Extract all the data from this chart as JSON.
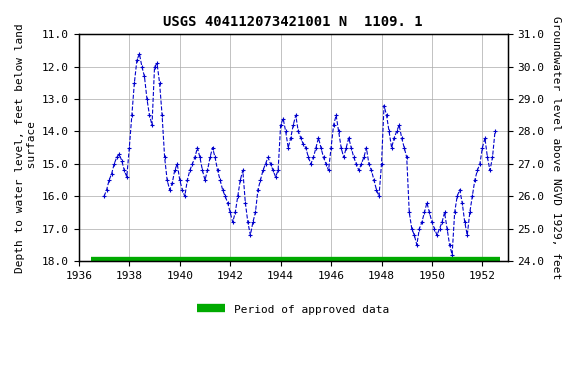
{
  "title": "USGS 404112073421001 N  1109. 1",
  "xlabel": "",
  "ylabel_left": "Depth to water level, feet below land\n surface",
  "ylabel_right": "Groundwater level above NGVD 1929, feet",
  "xlim": [
    1936,
    1953
  ],
  "ylim_left": [
    11.0,
    18.0
  ],
  "ylim_right": [
    31.0,
    24.0
  ],
  "yticks_left": [
    11.0,
    12.0,
    13.0,
    14.0,
    15.0,
    16.0,
    17.0,
    18.0
  ],
  "yticks_right": [
    31.0,
    30.0,
    29.0,
    28.0,
    27.0,
    26.0,
    25.0,
    24.0
  ],
  "xticks": [
    1936,
    1938,
    1940,
    1942,
    1944,
    1946,
    1948,
    1950,
    1952
  ],
  "line_color": "#0000CC",
  "green_bar_color": "#00AA00",
  "legend_label": "Period of approved data",
  "background_color": "#ffffff",
  "grid_color": "#aaaaaa",
  "x": [
    1937.0,
    1937.1,
    1937.2,
    1937.3,
    1937.4,
    1937.5,
    1937.6,
    1937.7,
    1937.8,
    1937.9,
    1938.0,
    1938.1,
    1938.2,
    1938.3,
    1938.4,
    1938.5,
    1938.6,
    1938.7,
    1938.8,
    1938.9,
    1939.0,
    1939.1,
    1939.2,
    1939.3,
    1939.4,
    1939.5,
    1939.6,
    1939.7,
    1939.8,
    1939.9,
    1940.0,
    1940.1,
    1940.2,
    1940.3,
    1940.4,
    1940.5,
    1940.6,
    1940.7,
    1940.8,
    1940.9,
    1941.0,
    1941.1,
    1941.2,
    1941.3,
    1941.4,
    1941.5,
    1941.6,
    1941.7,
    1941.8,
    1941.9,
    1942.0,
    1942.1,
    1942.2,
    1942.3,
    1942.4,
    1942.5,
    1942.6,
    1942.7,
    1942.8,
    1942.9,
    1943.0,
    1943.1,
    1943.2,
    1943.3,
    1943.4,
    1943.5,
    1943.6,
    1943.7,
    1943.8,
    1943.9,
    1944.0,
    1944.1,
    1944.2,
    1944.3,
    1944.4,
    1944.5,
    1944.6,
    1944.7,
    1944.8,
    1944.9,
    1945.0,
    1945.1,
    1945.2,
    1945.3,
    1945.4,
    1945.5,
    1945.6,
    1945.7,
    1945.8,
    1945.9,
    1946.0,
    1946.1,
    1946.2,
    1946.3,
    1946.4,
    1946.5,
    1946.6,
    1946.7,
    1946.8,
    1946.9,
    1947.0,
    1947.1,
    1947.2,
    1947.3,
    1947.4,
    1947.5,
    1947.6,
    1947.7,
    1947.8,
    1947.9,
    1948.0,
    1948.1,
    1948.2,
    1948.3,
    1948.4,
    1948.5,
    1948.6,
    1948.7,
    1948.8,
    1948.9,
    1949.0,
    1949.1,
    1949.2,
    1949.3,
    1949.4,
    1949.5,
    1949.6,
    1949.7,
    1949.8,
    1949.9,
    1950.0,
    1950.1,
    1950.2,
    1950.3,
    1950.4,
    1950.5,
    1950.6,
    1950.7,
    1950.8,
    1950.9,
    1951.0,
    1951.1,
    1951.2,
    1951.3,
    1951.4,
    1951.5,
    1951.6,
    1951.7,
    1951.8,
    1951.9,
    1952.0,
    1952.1,
    1952.2,
    1952.3,
    1952.4,
    1952.5
  ],
  "y": [
    16.0,
    15.8,
    15.5,
    15.3,
    15.0,
    14.8,
    14.7,
    14.9,
    15.2,
    15.4,
    14.5,
    13.5,
    12.5,
    11.8,
    11.6,
    12.0,
    12.3,
    13.0,
    13.5,
    13.8,
    12.0,
    11.9,
    12.5,
    13.5,
    14.8,
    15.5,
    15.8,
    15.6,
    15.2,
    15.0,
    15.5,
    15.8,
    16.0,
    15.5,
    15.2,
    15.0,
    14.8,
    14.5,
    14.8,
    15.2,
    15.5,
    15.2,
    14.8,
    14.5,
    14.8,
    15.2,
    15.5,
    15.8,
    16.0,
    16.2,
    16.5,
    16.8,
    16.5,
    16.0,
    15.5,
    15.2,
    16.2,
    16.8,
    17.2,
    16.8,
    16.5,
    15.8,
    15.5,
    15.2,
    15.0,
    14.8,
    15.0,
    15.2,
    15.4,
    15.2,
    13.8,
    13.6,
    14.0,
    14.5,
    14.2,
    13.8,
    13.5,
    14.0,
    14.2,
    14.4,
    14.5,
    14.8,
    15.0,
    14.8,
    14.5,
    14.2,
    14.5,
    14.8,
    15.0,
    15.2,
    14.5,
    13.8,
    13.5,
    14.0,
    14.5,
    14.8,
    14.5,
    14.2,
    14.5,
    14.8,
    15.0,
    15.2,
    15.0,
    14.8,
    14.5,
    15.0,
    15.2,
    15.5,
    15.8,
    16.0,
    15.0,
    13.2,
    13.5,
    14.0,
    14.5,
    14.2,
    14.0,
    13.8,
    14.2,
    14.5,
    14.8,
    16.5,
    17.0,
    17.2,
    17.5,
    17.0,
    16.8,
    16.5,
    16.2,
    16.5,
    16.8,
    17.0,
    17.2,
    17.0,
    16.8,
    16.5,
    17.0,
    17.5,
    17.8,
    16.5,
    16.0,
    15.8,
    16.2,
    16.8,
    17.2,
    16.5,
    16.0,
    15.5,
    15.2,
    15.0,
    14.5,
    14.2,
    14.8,
    15.2,
    14.8,
    14.0
  ],
  "green_bar_x_start": 1936.5,
  "green_bar_x_end": 1952.7,
  "green_bar_y": 18.0
}
